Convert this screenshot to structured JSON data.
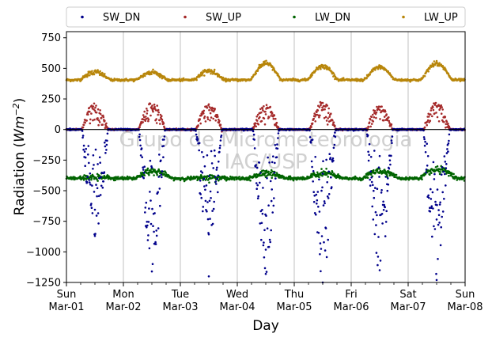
{
  "chart_data": {
    "type": "scatter",
    "xlabel": "Day",
    "ylabel_main": "Radiation (",
    "ylabel_unit": "Wm",
    "ylabel_exp": "−2",
    "ylabel_close": ")",
    "ylim": [
      -1250,
      800
    ],
    "xlim": [
      0,
      7
    ],
    "yticks": [
      750,
      500,
      250,
      0,
      -250,
      -500,
      -750,
      -1000,
      -1250
    ],
    "ytick_labels": [
      "750",
      "500",
      "250",
      "0",
      "−250",
      "−500",
      "−750",
      "−1000",
      "−1250"
    ],
    "xticks": [
      {
        "day": "Sun",
        "date": "Mar-01"
      },
      {
        "day": "Mon",
        "date": "Mar-02"
      },
      {
        "day": "Tue",
        "date": "Mar-03"
      },
      {
        "day": "Wed",
        "date": "Mar-04"
      },
      {
        "day": "Thu",
        "date": "Mar-05"
      },
      {
        "day": "Fri",
        "date": "Mar-06"
      },
      {
        "day": "Sat",
        "date": "Mar-07"
      },
      {
        "day": "Sun",
        "date": "Mar-08"
      }
    ],
    "grid": "vertical",
    "zero_line": true,
    "legend_placement": "top",
    "watermark": [
      "Grupo de Micrometeorologia",
      "IAG/USP"
    ],
    "series": [
      {
        "name": "SW_DN",
        "color": "#00008b",
        "peaks": [
          -870,
          -1160,
          -1200,
          -1180,
          -1250,
          -1150,
          -1230
        ],
        "typical_peaks": [
          -800,
          -1050,
          -900,
          -1000,
          -1100,
          -1050,
          -1050
        ]
      },
      {
        "name": "SW_UP",
        "color": "#a52a2a",
        "peaks": [
          220,
          230,
          220,
          210,
          220,
          205,
          230
        ],
        "night_value": 0
      },
      {
        "name": "LW_DN",
        "color": "#006400",
        "base": -400,
        "daytime_values": [
          -390,
          -340,
          -390,
          -360,
          -360,
          -340,
          -330
        ]
      },
      {
        "name": "LW_UP",
        "color": "#b8860b",
        "base": 405,
        "peaks": [
          470,
          470,
          480,
          540,
          520,
          510,
          545
        ]
      }
    ]
  }
}
